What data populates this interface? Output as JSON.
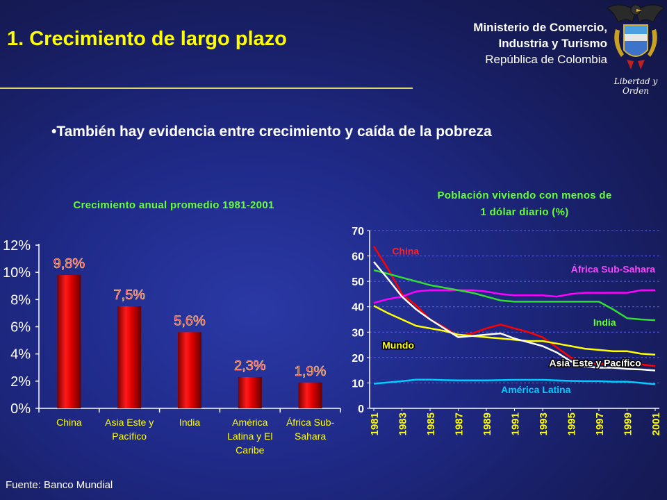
{
  "header": {
    "title": "1. Crecimiento de largo plazo",
    "ministry_line1": "Ministerio de Comercio,",
    "ministry_line2": "Industria y Turismo",
    "ministry_line3": "República de Colombia",
    "motto": "Libertad y Orden"
  },
  "bullet": "•También hay evidencia entre crecimiento y caída de la pobreza",
  "source": "Fuente: Banco Mundial",
  "chart_data": [
    {
      "type": "bar",
      "title": "Crecimiento anual promedio 1981-2001",
      "categories": [
        [
          "China"
        ],
        [
          "Asia Este y",
          "Pacífico"
        ],
        [
          "India"
        ],
        [
          "América",
          "Latina y El",
          "Caribe"
        ],
        [
          "África Sub-",
          "Sahara"
        ]
      ],
      "values": [
        9.8,
        7.5,
        5.6,
        2.3,
        1.9
      ],
      "data_labels": [
        "9,8%",
        "7,5%",
        "5,6%",
        "2,3%",
        "1,9%"
      ],
      "yticks": [
        "0%",
        "2%",
        "4%",
        "6%",
        "8%",
        "10%",
        "12%"
      ],
      "ylim": [
        0,
        12
      ],
      "colors": {
        "bar": "#cc0000",
        "label": "#ff2a2a",
        "axis": "#ffffff"
      }
    },
    {
      "type": "line",
      "title": [
        "Población viviendo con menos de",
        "1 dólar diario (%)"
      ],
      "x": [
        1981,
        1982,
        1983,
        1984,
        1985,
        1986,
        1987,
        1988,
        1989,
        1990,
        1991,
        1992,
        1993,
        1994,
        1995,
        1996,
        1997,
        1998,
        1999,
        2000,
        2001
      ],
      "xtick_labels": [
        "1981",
        "1983",
        "1985",
        "1987",
        "1989",
        "1991",
        "1993",
        "1995",
        "1997",
        "1999",
        "2001"
      ],
      "yticks": [
        "0",
        "10",
        "20",
        "30",
        "40",
        "50",
        "60",
        "70"
      ],
      "ylim": [
        0,
        70
      ],
      "grid": true,
      "series": [
        {
          "name": "China",
          "color": "#ff0000",
          "values": [
            63.8,
            55,
            45,
            40.5,
            35,
            32,
            28.5,
            29.5,
            31.5,
            33,
            31.5,
            30,
            28,
            24,
            20,
            17.5,
            17.5,
            17.5,
            17.5,
            17.3,
            16.6
          ]
        },
        {
          "name": "África Sub-Sahara",
          "color": "#ff00ff",
          "values": [
            41.5,
            43,
            44,
            46,
            46.5,
            46.5,
            46.5,
            46.5,
            46,
            45,
            44.5,
            44.5,
            44.5,
            44,
            45,
            45.5,
            45.5,
            45.5,
            45.5,
            46.5,
            46.5
          ]
        },
        {
          "name": "India",
          "color": "#33dd33",
          "values": [
            54.4,
            53,
            51.5,
            50,
            48.5,
            47.5,
            46.5,
            45.5,
            44,
            42.5,
            42,
            42,
            42,
            42,
            42,
            42,
            42,
            39,
            35.5,
            35,
            34.7
          ]
        },
        {
          "name": "Mundo",
          "color": "#ffff00",
          "values": [
            40.4,
            37.5,
            35,
            32.5,
            31.5,
            30.5,
            29,
            28.5,
            28,
            27.5,
            27,
            26.5,
            26.5,
            25.5,
            24.5,
            23.5,
            23,
            22.5,
            22.5,
            21.5,
            21.1
          ]
        },
        {
          "name": "Asia Este y Pacífico",
          "color": "#ffffff",
          "values": [
            57.7,
            51,
            44,
            39,
            35,
            31.5,
            28,
            28.5,
            29,
            29.5,
            27.5,
            26,
            24.5,
            22,
            18.5,
            16.5,
            16,
            16,
            15.5,
            15.3,
            14.9
          ]
        },
        {
          "name": "América Latina",
          "color": "#00ccff",
          "values": [
            9.7,
            10.2,
            10.7,
            11.3,
            11.3,
            11.1,
            11,
            11,
            11,
            11.1,
            11.2,
            11.2,
            11.2,
            11,
            10.8,
            10.7,
            10.7,
            10.5,
            10.5,
            10,
            9.5
          ]
        }
      ],
      "label_colors": {
        "China": "#ff2222",
        "África Sub-Sahara": "#ff44ff",
        "India": "#66ff33",
        "Mundo": "#ffff00",
        "Asia Este y Pacífico": "#ffffff",
        "América Latina": "#00ccff"
      },
      "axis_label_color": "#ffff00"
    }
  ]
}
